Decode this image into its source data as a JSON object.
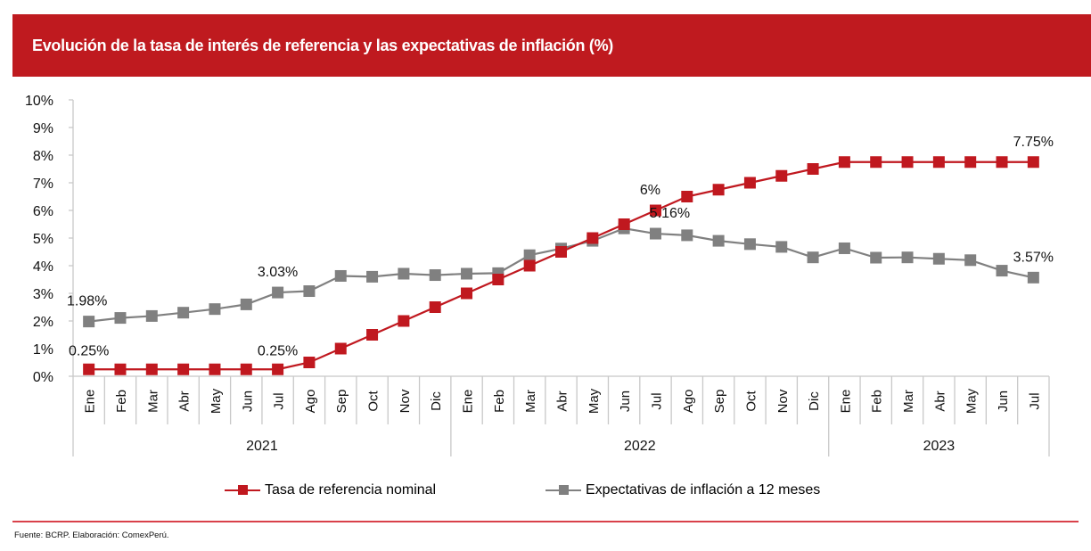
{
  "header": {
    "title": "Evolución de la tasa de interés de referencia y las expectativas de inflación (%)",
    "background_color": "#bf1a1f"
  },
  "chart_data": {
    "type": "line",
    "title": "Evolución de la tasa de interés de referencia y las expectativas de inflación (%)",
    "xlabel": "",
    "ylabel": "",
    "ylim": [
      0,
      10
    ],
    "yticks": [
      "0%",
      "1%",
      "2%",
      "3%",
      "4%",
      "5%",
      "6%",
      "7%",
      "8%",
      "9%",
      "10%"
    ],
    "grid": false,
    "legend_position": "bottom",
    "categories": [
      "Ene",
      "Feb",
      "Mar",
      "Abr",
      "May",
      "Jun",
      "Jul",
      "Ago",
      "Sep",
      "Oct",
      "Nov",
      "Dic",
      "Ene",
      "Feb",
      "Mar",
      "Abr",
      "May",
      "Jun",
      "Jul",
      "Ago",
      "Sep",
      "Oct",
      "Nov",
      "Dic",
      "Ene",
      "Feb",
      "Mar",
      "Abr",
      "May",
      "Jun",
      "Jul"
    ],
    "year_groups": [
      {
        "label": "2021",
        "count": 12
      },
      {
        "label": "2022",
        "count": 12
      },
      {
        "label": "2023",
        "count": 7
      }
    ],
    "series": [
      {
        "name": "Tasa de referencia nominal",
        "color": "#c0181f",
        "values": [
          0.25,
          0.25,
          0.25,
          0.25,
          0.25,
          0.25,
          0.25,
          0.5,
          1.0,
          1.5,
          2.0,
          2.5,
          3.0,
          3.5,
          4.0,
          4.5,
          5.0,
          5.5,
          6.0,
          6.5,
          6.75,
          7.0,
          7.25,
          7.5,
          7.75,
          7.75,
          7.75,
          7.75,
          7.75,
          7.75,
          7.75
        ],
        "labels": [
          {
            "index": 0,
            "text": "0.25%"
          },
          {
            "index": 6,
            "text": "0.25%"
          },
          {
            "index": 18,
            "text": "6%"
          },
          {
            "index": 30,
            "text": "7.75%"
          }
        ]
      },
      {
        "name": "Expectativas de inflación a 12 meses",
        "color": "#808080",
        "values": [
          1.98,
          2.11,
          2.18,
          2.3,
          2.43,
          2.6,
          3.03,
          3.08,
          3.63,
          3.6,
          3.71,
          3.66,
          3.71,
          3.73,
          4.38,
          4.62,
          4.9,
          5.35,
          5.16,
          5.1,
          4.9,
          4.78,
          4.68,
          4.3,
          4.63,
          4.29,
          4.3,
          4.25,
          4.2,
          3.82,
          3.57
        ],
        "labels": [
          {
            "index": 0,
            "text": "1.98%"
          },
          {
            "index": 6,
            "text": "3.03%"
          },
          {
            "index": 18,
            "text": "5.16%"
          },
          {
            "index": 30,
            "text": "3.57%"
          }
        ]
      }
    ]
  },
  "legend": {
    "items": [
      {
        "label": "Tasa de referencia nominal",
        "color": "#c0181f"
      },
      {
        "label": "Expectativas de inflación a 12 meses",
        "color": "#808080"
      }
    ]
  },
  "footer": {
    "source": "Fuente: BCRP. Elaboración: ComexPerú.",
    "rule_color": "#d9414a"
  }
}
